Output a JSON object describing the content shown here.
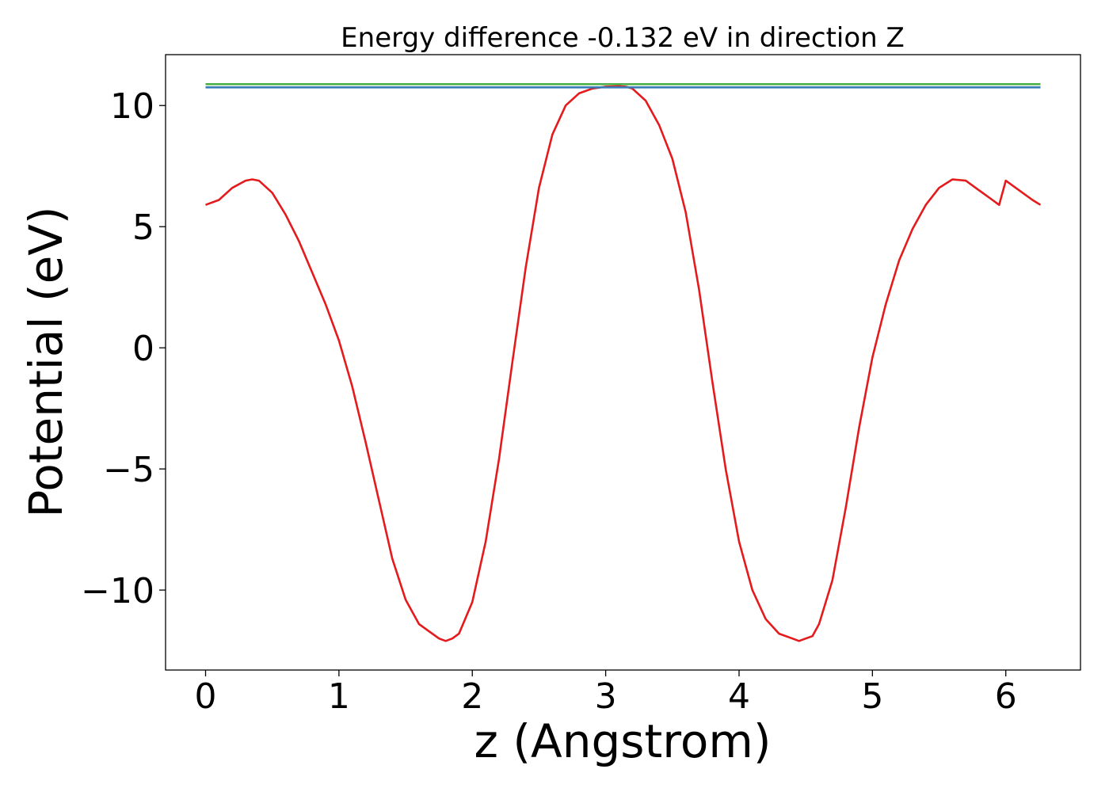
{
  "chart_data": {
    "type": "line",
    "title": "Energy difference -0.132 eV in direction Z",
    "xlabel": "z (Angstrom)",
    "ylabel": "Potential (eV)",
    "xlim": [
      -0.3,
      6.56
    ],
    "ylim": [
      -13.3,
      12.1
    ],
    "xticks": [
      0,
      1,
      2,
      3,
      4,
      5,
      6
    ],
    "xtick_labels": [
      "0",
      "1",
      "2",
      "3",
      "4",
      "5",
      "6"
    ],
    "yticks": [
      -10,
      -5,
      0,
      5,
      10
    ],
    "ytick_labels": [
      "−10",
      "−5",
      "0",
      "5",
      "10"
    ],
    "grid": false,
    "legend": "none",
    "series": [
      {
        "color": "#e41a1c",
        "x": [
          0,
          0.1,
          0.2,
          0.3,
          0.35,
          0.4,
          0.5,
          0.6,
          0.7,
          0.8,
          0.9,
          1.0,
          1.1,
          1.2,
          1.3,
          1.4,
          1.5,
          1.6,
          1.7,
          1.75,
          1.8,
          1.85,
          1.9,
          2.0,
          2.1,
          2.2,
          2.3,
          2.4,
          2.5,
          2.6,
          2.7,
          2.8,
          2.9,
          3.0,
          3.1,
          3.15,
          3.2,
          3.3,
          3.4,
          3.5,
          3.6,
          3.7,
          3.8,
          3.9,
          4.0,
          4.1,
          4.2,
          4.3,
          4.4,
          4.45,
          4.5,
          4.55,
          4.6,
          4.7,
          4.8,
          4.9,
          5.0,
          5.1,
          5.2,
          5.3,
          5.4,
          5.5,
          5.6,
          5.7,
          5.8,
          5.9,
          5.95,
          6.0,
          6.1,
          6.2,
          6.26
        ],
        "y": [
          5.9,
          6.1,
          6.6,
          6.9,
          6.95,
          6.9,
          6.4,
          5.5,
          4.4,
          3.1,
          1.8,
          0.3,
          -1.6,
          -3.9,
          -6.3,
          -8.7,
          -10.4,
          -11.4,
          -11.8,
          -12.0,
          -12.1,
          -12.0,
          -11.8,
          -10.5,
          -8.0,
          -4.6,
          -0.6,
          3.3,
          6.6,
          8.8,
          10.0,
          10.5,
          10.7,
          10.78,
          10.8,
          10.78,
          10.7,
          10.2,
          9.2,
          7.8,
          5.6,
          2.4,
          -1.4,
          -5.0,
          -8.0,
          -10.0,
          -11.2,
          -11.8,
          -12.0,
          -12.1,
          -12.0,
          -11.9,
          -11.4,
          -9.6,
          -6.6,
          -3.3,
          -0.4,
          1.8,
          3.6,
          4.9,
          5.9,
          6.6,
          6.95,
          6.9,
          6.5,
          6.1,
          5.9,
          6.9,
          6.5,
          6.1,
          5.9
        ]
      },
      {
        "color": "#4daf4a",
        "x": [
          0,
          6.26
        ],
        "y": [
          10.88,
          10.88
        ]
      },
      {
        "color": "#377eb8",
        "x": [
          0,
          6.26
        ],
        "y": [
          10.75,
          10.75
        ]
      }
    ]
  }
}
